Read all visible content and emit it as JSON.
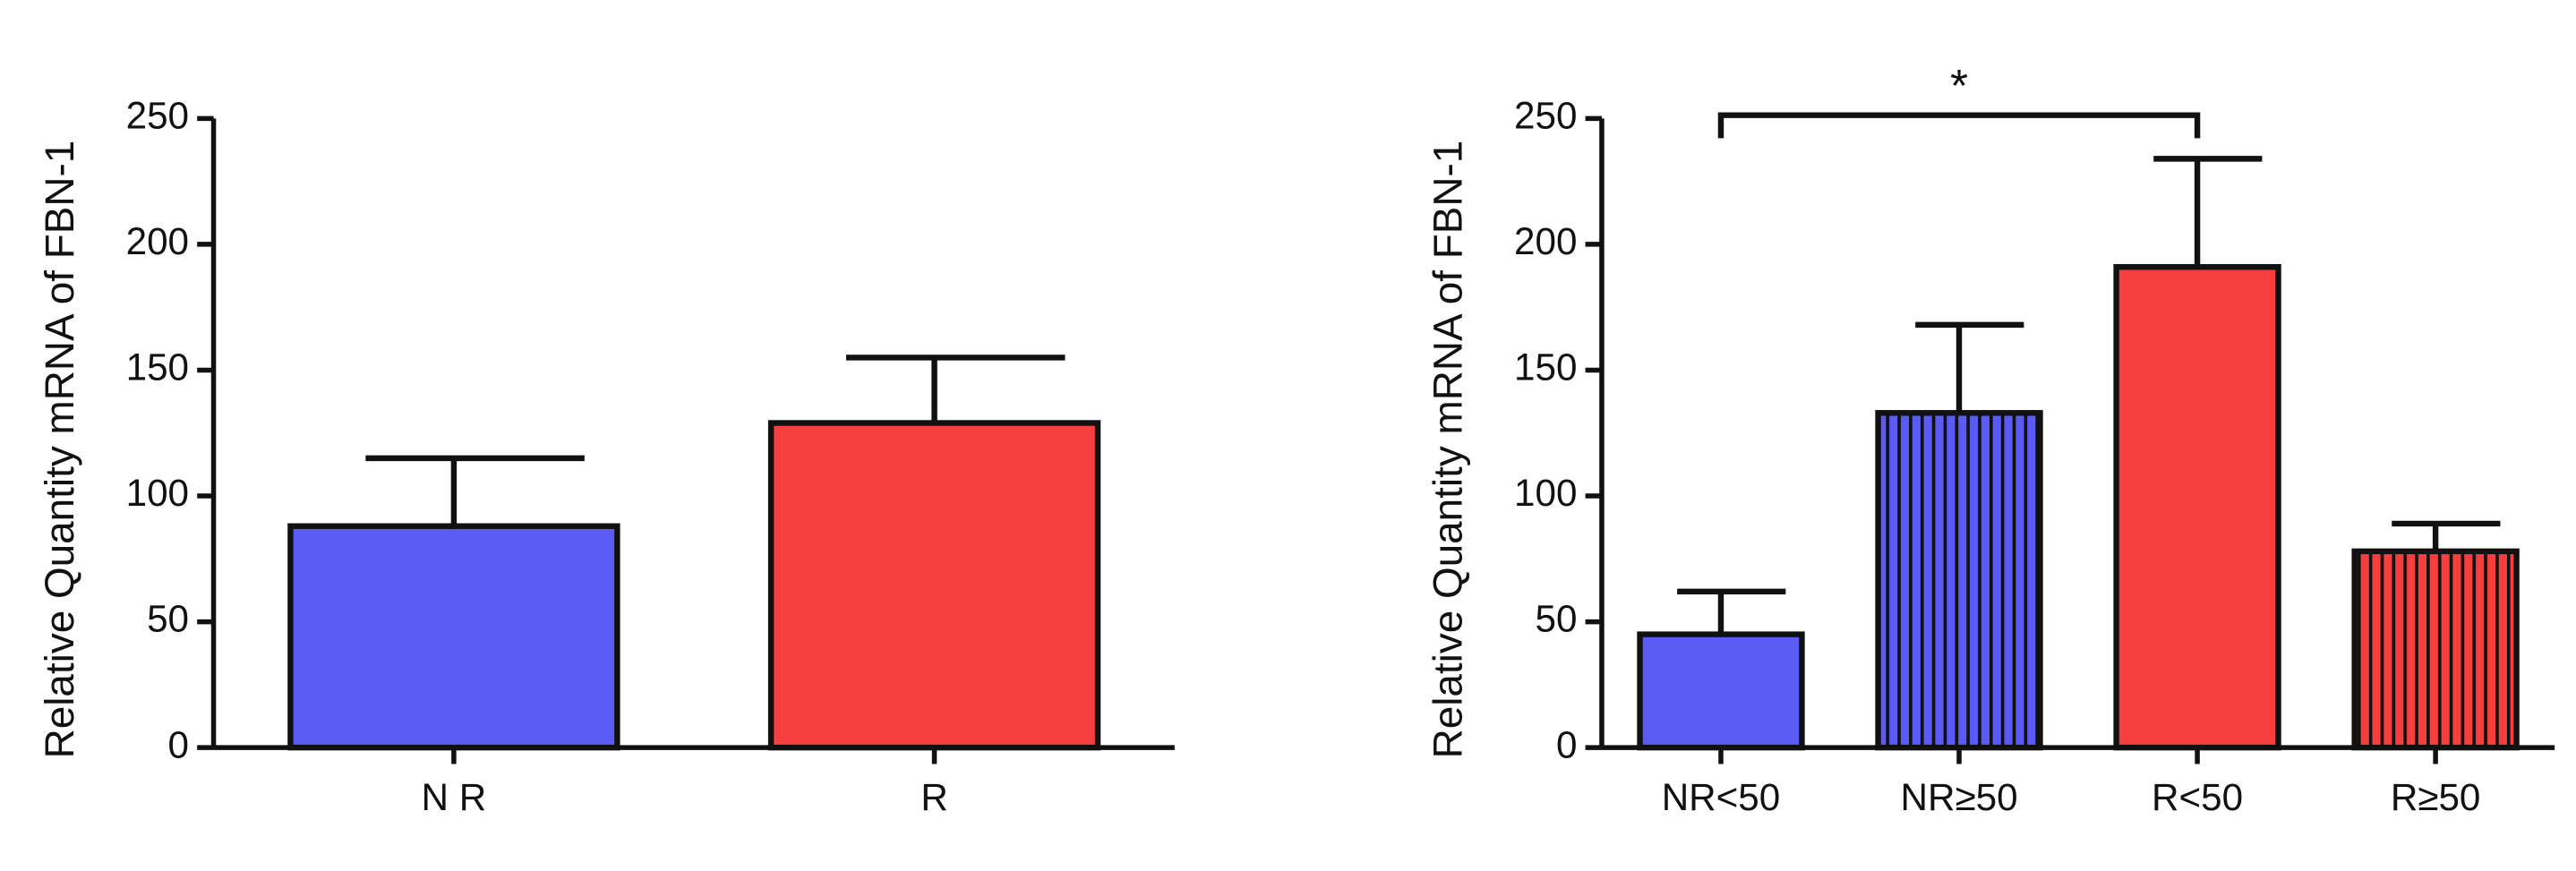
{
  "chart_data": [
    {
      "type": "bar",
      "y_label": "Relative Quantity mRNA of FBN-1",
      "categories": [
        "N R",
        "R"
      ],
      "values": [
        88,
        129
      ],
      "errors": [
        27,
        26
      ],
      "colors": [
        "#5a5af5",
        "#f53f3f"
      ],
      "hatched": [
        false,
        false
      ],
      "ylim": [
        0,
        250
      ],
      "yticks": [
        0,
        50,
        100,
        150,
        200,
        250
      ]
    },
    {
      "type": "bar",
      "y_label": "Relative Quantity mRNA of FBN-1",
      "categories": [
        "NR<50",
        "NR≥50",
        "R<50",
        "R≥50"
      ],
      "values": [
        45,
        133,
        191,
        78
      ],
      "errors": [
        17,
        35,
        43,
        11
      ],
      "colors": [
        "#5a5af5",
        "#5a5af5",
        "#f53f3f",
        "#f53f3f"
      ],
      "hatched": [
        false,
        true,
        false,
        true
      ],
      "ylim": [
        0,
        250
      ],
      "yticks": [
        0,
        50,
        100,
        150,
        200,
        250
      ],
      "bracket": {
        "label": "*",
        "between": [
          "NR<50",
          "R<50"
        ]
      }
    }
  ]
}
